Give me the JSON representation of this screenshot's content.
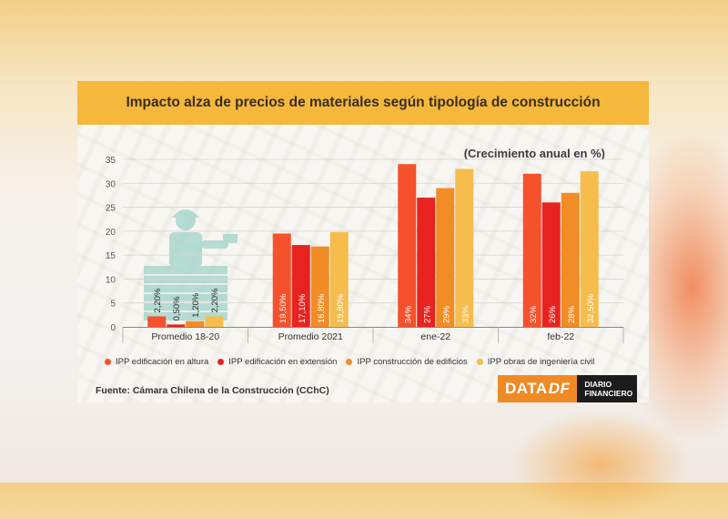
{
  "title": "Impacto alza de precios de materiales según tipología de construcción",
  "unit_label": "(Crecimiento anual en %)",
  "source": "Fuente: Cámara Chilena de la Construcción (CChC)",
  "logo": {
    "data": "DATA",
    "df": "DF",
    "diario": "DIARIO",
    "financiero": "FINANCIERO"
  },
  "chart_data": {
    "type": "bar",
    "title": "Impacto alza de precios de materiales según tipología de construcción",
    "ylabel": "(Crecimiento anual en %)",
    "ylim": [
      0,
      35
    ],
    "yticks": [
      0,
      5,
      10,
      15,
      20,
      25,
      30,
      35
    ],
    "categories": [
      "Promedio 18-20",
      "Promedio 2021",
      "ene-22",
      "feb-22"
    ],
    "series": [
      {
        "name": "IPP edificación en altura",
        "color": "#f4512c",
        "values": [
          2.2,
          19.5,
          34,
          32
        ],
        "labels": [
          "2,20%",
          "19,50%",
          "34%",
          "32%"
        ]
      },
      {
        "name": "IPP edificación en extensión",
        "color": "#e8231f",
        "values": [
          0.5,
          17.1,
          27,
          26
        ],
        "labels": [
          "0,50%",
          "17,10%",
          "27%",
          "26%"
        ]
      },
      {
        "name": "IPP construcción de edificios",
        "color": "#f28c24",
        "values": [
          1.2,
          16.8,
          29,
          28
        ],
        "labels": [
          "1,20%",
          "16,80%",
          "29%",
          "28%"
        ]
      },
      {
        "name": "IPP obras de ingeniería civil",
        "color": "#f6bd4c",
        "values": [
          2.2,
          19.8,
          33,
          32.5
        ],
        "labels": [
          "2,20%",
          "19,80%",
          "33%",
          "32,50%"
        ]
      }
    ],
    "legend": "bottom"
  }
}
